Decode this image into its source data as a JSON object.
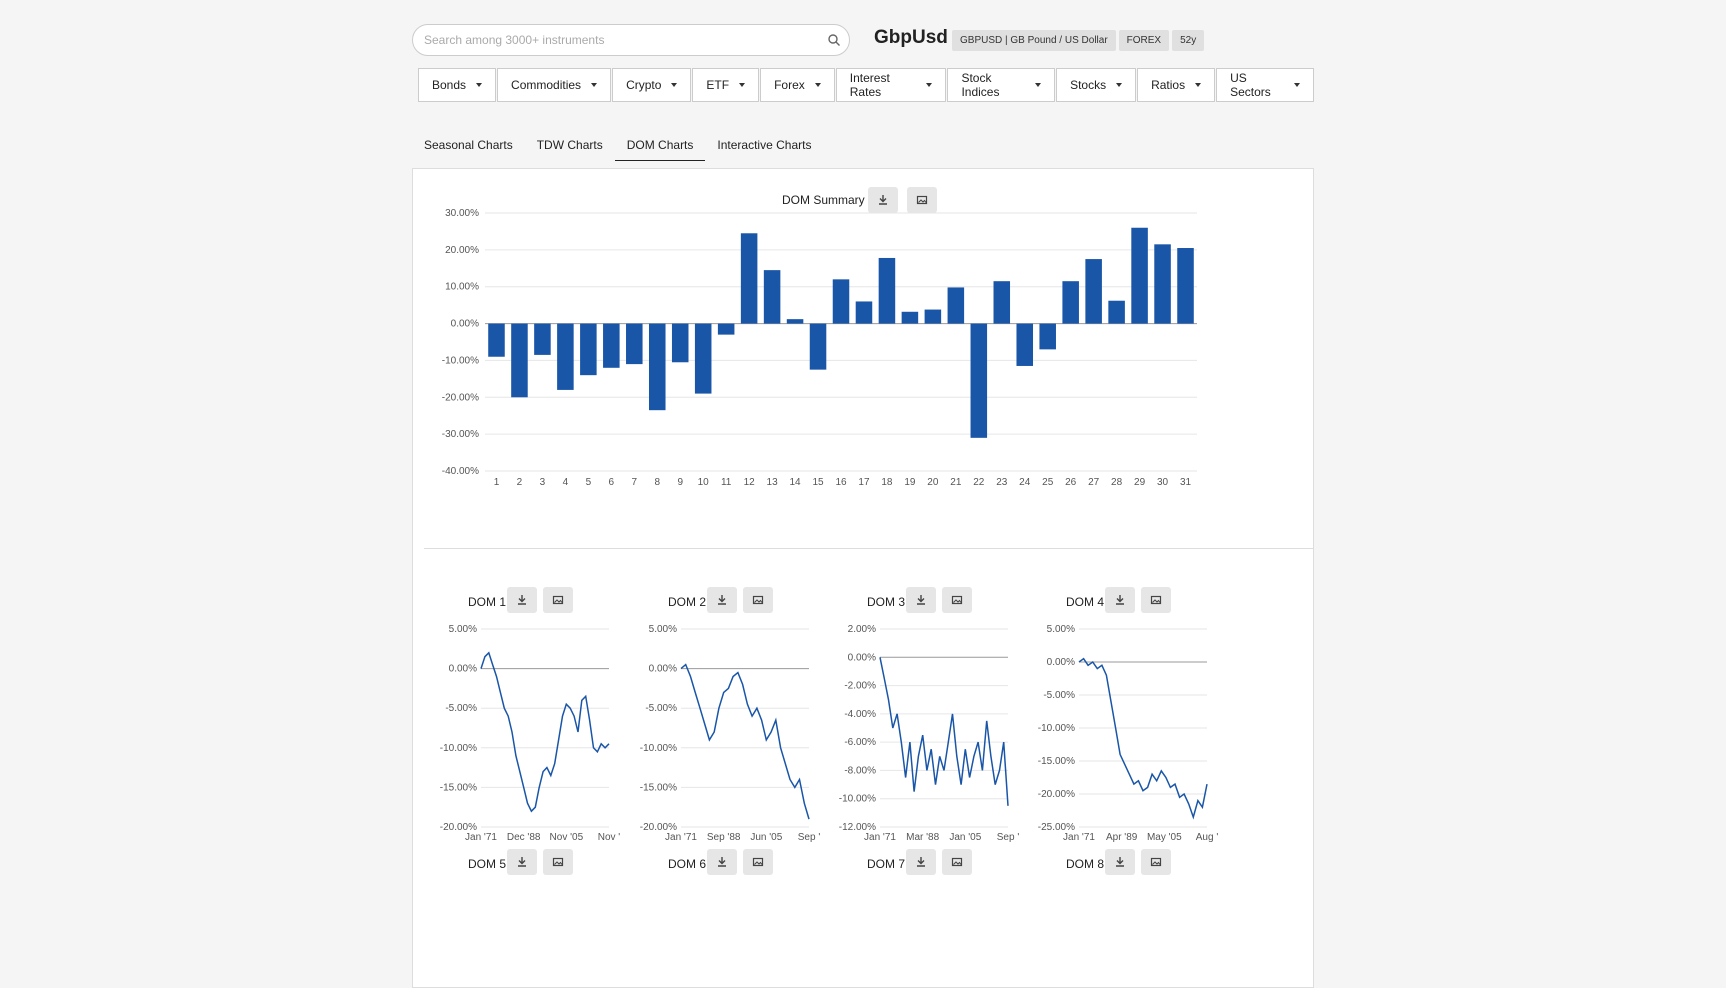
{
  "search": {
    "placeholder": "Search among 3000+ instruments"
  },
  "ticker": "GbpUsd",
  "badges": [
    "GBPUSD | GB Pound / US Dollar",
    "FOREX",
    "52y"
  ],
  "menu": [
    "Bonds",
    "Commodities",
    "Crypto",
    "ETF",
    "Forex",
    "Interest Rates",
    "Stock Indices",
    "Stocks",
    "Ratios",
    "US Sectors"
  ],
  "tabs": [
    {
      "label": "Seasonal Charts",
      "active": false
    },
    {
      "label": "TDW Charts",
      "active": false
    },
    {
      "label": "DOM Charts",
      "active": true
    },
    {
      "label": "Interactive Charts",
      "active": false
    }
  ],
  "summary": {
    "title": "DOM Summary"
  },
  "colors": {
    "bar": "#1a56a8",
    "line": "#1a56a8",
    "grid": "#e6e6e6"
  },
  "chart_data": [
    {
      "type": "bar",
      "title": "DOM Summary",
      "categories": [
        "1",
        "2",
        "3",
        "4",
        "5",
        "6",
        "7",
        "8",
        "9",
        "10",
        "11",
        "12",
        "13",
        "14",
        "15",
        "16",
        "17",
        "18",
        "19",
        "20",
        "21",
        "22",
        "23",
        "24",
        "25",
        "26",
        "27",
        "28",
        "29",
        "30",
        "31"
      ],
      "values": [
        -9,
        -20,
        -8.5,
        -18,
        -14,
        -12,
        -11,
        -23.5,
        -10.5,
        -19,
        -3,
        24.5,
        14.5,
        1.2,
        -12.5,
        12,
        6,
        17.8,
        3.2,
        3.8,
        9.8,
        -31,
        11.5,
        -11.5,
        -7,
        11.5,
        17.5,
        6.2,
        26,
        21.5,
        20.5
      ],
      "ylim": [
        -40,
        30
      ],
      "yticks": [
        "30.00%",
        "20.00%",
        "10.00%",
        "0.00%",
        "-10.00%",
        "-20.00%",
        "-30.00%",
        "-40.00%"
      ]
    },
    {
      "type": "line",
      "title": "DOM 1",
      "yticks": [
        "5.00%",
        "0.00%",
        "-5.00%",
        "-10.00%",
        "-15.00%",
        "-20.00%"
      ],
      "ylim": [
        -20,
        5
      ],
      "xticks": [
        "Jan '71",
        "Dec '88",
        "Nov '05",
        "Nov '"
      ],
      "values": [
        0,
        1.5,
        2,
        0.5,
        -1,
        -3,
        -5,
        -6,
        -8,
        -11,
        -13,
        -15,
        -17,
        -18,
        -17.5,
        -15,
        -13,
        -12.5,
        -13.5,
        -12,
        -9,
        -6,
        -4.5,
        -5,
        -6,
        -8,
        -4,
        -3.5,
        -6.5,
        -10,
        -10.5,
        -9.5,
        -10,
        -9.5
      ]
    },
    {
      "type": "line",
      "title": "DOM 2",
      "yticks": [
        "5.00%",
        "0.00%",
        "-5.00%",
        "-10.00%",
        "-15.00%",
        "-20.00%"
      ],
      "ylim": [
        -20,
        5
      ],
      "xticks": [
        "Jan '71",
        "Sep '88",
        "Jun '05",
        "Sep '"
      ],
      "values": [
        0,
        0.5,
        -1,
        -3,
        -5,
        -7,
        -9,
        -8,
        -5,
        -3,
        -2.5,
        -1,
        -0.5,
        -2,
        -4.5,
        -6,
        -5,
        -6.5,
        -9,
        -8,
        -6.5,
        -10,
        -12,
        -14,
        -15,
        -14,
        -17,
        -19
      ]
    },
    {
      "type": "line",
      "title": "DOM 3",
      "yticks": [
        "2.00%",
        "0.00%",
        "-2.00%",
        "-4.00%",
        "-6.00%",
        "-8.00%",
        "-10.00%",
        "-12.00%"
      ],
      "ylim": [
        -12,
        2
      ],
      "xticks": [
        "Jan '71",
        "Mar '88",
        "Jan '05",
        "Sep '"
      ],
      "values": [
        0,
        -1.5,
        -3,
        -5,
        -4,
        -6,
        -8.5,
        -6,
        -9.5,
        -7,
        -5.5,
        -8,
        -6.5,
        -9,
        -7,
        -8,
        -6,
        -4,
        -7,
        -9,
        -6.5,
        -8.5,
        -7,
        -6,
        -8,
        -4.5,
        -7,
        -9,
        -8,
        -6,
        -10.5
      ]
    },
    {
      "type": "line",
      "title": "DOM 4",
      "yticks": [
        "5.00%",
        "0.00%",
        "-5.00%",
        "-10.00%",
        "-15.00%",
        "-20.00%",
        "-25.00%"
      ],
      "ylim": [
        -25,
        5
      ],
      "xticks": [
        "Jan '71",
        "Apr '89",
        "May '05",
        "Aug '"
      ],
      "values": [
        0,
        0.5,
        -0.5,
        0,
        -1,
        -0.5,
        -2,
        -6,
        -10,
        -14,
        -15.5,
        -17,
        -18.5,
        -18,
        -19.5,
        -19,
        -17,
        -18,
        -16.5,
        -17.5,
        -19,
        -18.5,
        -20.5,
        -20,
        -21.5,
        -23.5,
        -21,
        -22,
        -18.5
      ]
    },
    {
      "type": "line",
      "title": "DOM 5"
    },
    {
      "type": "line",
      "title": "DOM 6"
    },
    {
      "type": "line",
      "title": "DOM 7"
    },
    {
      "type": "line",
      "title": "DOM 8"
    }
  ]
}
